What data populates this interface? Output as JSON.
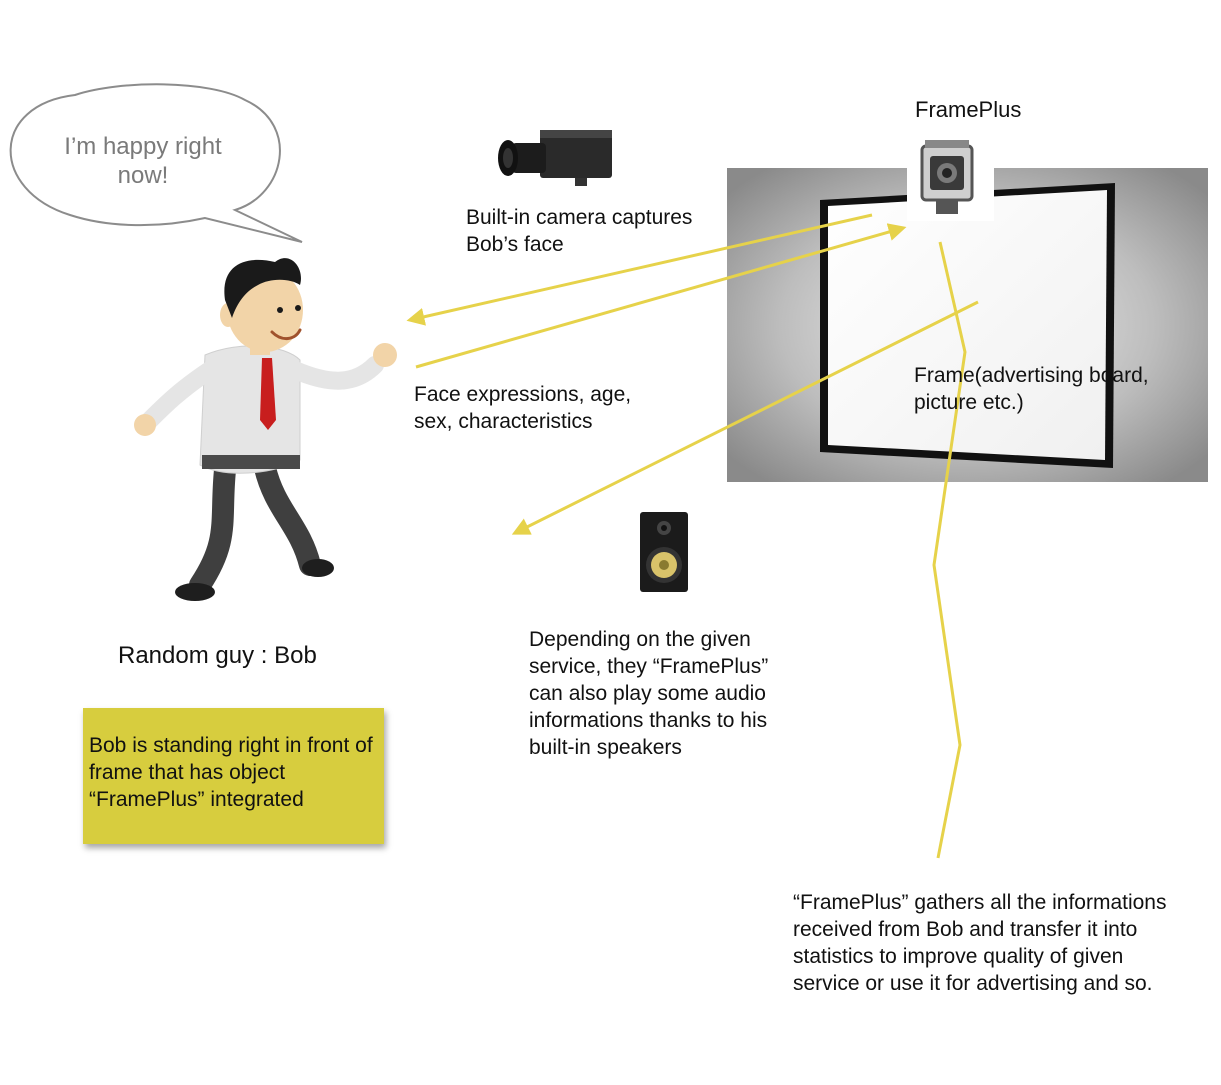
{
  "speech_bubble": {
    "text": "I’m happy right now!"
  },
  "frameplus_title": "FramePlus",
  "camera_caption": "Built-in camera captures Bob’s face",
  "face_caption": "Face expressions, age, sex, characteristics",
  "frame_caption": "Frame(advertising board, picture etc.)",
  "speaker_caption": "Depending on the given service, they “FramePlus” can also play some audio informations thanks to his built-in speakers",
  "stats_caption": "“FramePlus” gathers all the informations received from Bob and transfer it into statistics to improve quality of given service or use it for advertising and so.",
  "bob_label": "Random guy : Bob",
  "sticky_note": {
    "text": "Bob is standing right in front of frame that has object “FramePlus” integrated",
    "color": "#d7cd3e"
  },
  "colors": {
    "arrow": "#e6d24a",
    "text": "#111111",
    "bubble_text": "#7a7a7a"
  },
  "icons": [
    "camera-icon",
    "frameplus-device-icon",
    "speaker-icon",
    "bob-figure-icon",
    "frame-board-icon"
  ]
}
